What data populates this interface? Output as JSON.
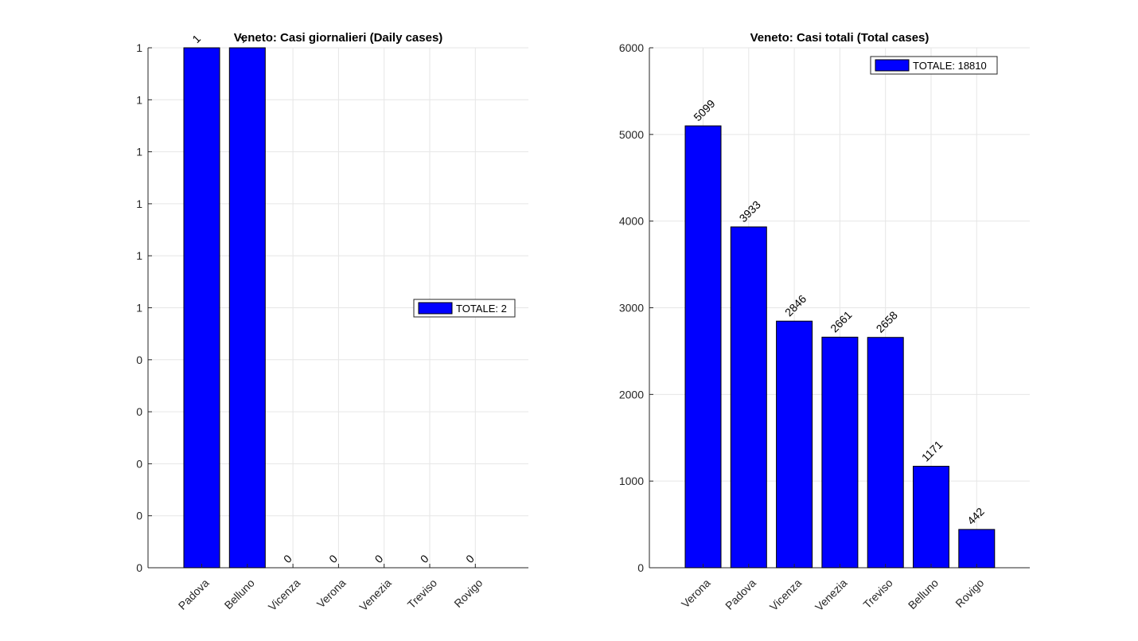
{
  "chart_data": [
    {
      "type": "bar",
      "title": "Veneto: Casi giornalieri (Daily cases)",
      "categories": [
        "Padova",
        "Belluno",
        "Vicenza",
        "Verona",
        "Venezia",
        "Treviso",
        "Rovigo"
      ],
      "values": [
        1,
        1,
        0,
        0,
        0,
        0,
        0
      ],
      "data_labels": [
        "1",
        "1",
        "0",
        "0",
        "0",
        "0",
        "0"
      ],
      "ylim": [
        0,
        1
      ],
      "yticks": [
        0,
        0.1,
        0.2,
        0.3,
        0.4,
        0.5,
        0.6,
        0.7,
        0.8,
        0.9,
        1
      ],
      "ytick_labels": [
        "0",
        "0",
        "0",
        "0",
        "0",
        "1",
        "1",
        "1",
        "1",
        "1",
        "1"
      ],
      "legend": {
        "label": "TOTALE: 2",
        "placement": "center-right"
      },
      "grid": true,
      "color": "#0000ff"
    },
    {
      "type": "bar",
      "title": "Veneto: Casi totali (Total cases)",
      "categories": [
        "Verona",
        "Padova",
        "Vicenza",
        "Venezia",
        "Treviso",
        "Belluno",
        "Rovigo"
      ],
      "values": [
        5099,
        3933,
        2846,
        2661,
        2658,
        1171,
        442
      ],
      "data_labels": [
        "5099",
        "3933",
        "2846",
        "2661",
        "2658",
        "1171",
        "442"
      ],
      "ylim": [
        0,
        6000
      ],
      "yticks": [
        0,
        1000,
        2000,
        3000,
        4000,
        5000,
        6000
      ],
      "ytick_labels": [
        "0",
        "1000",
        "2000",
        "3000",
        "4000",
        "5000",
        "6000"
      ],
      "legend": {
        "label": "TOTALE: 18810",
        "placement": "top-right"
      },
      "grid": true,
      "color": "#0000ff"
    }
  ]
}
